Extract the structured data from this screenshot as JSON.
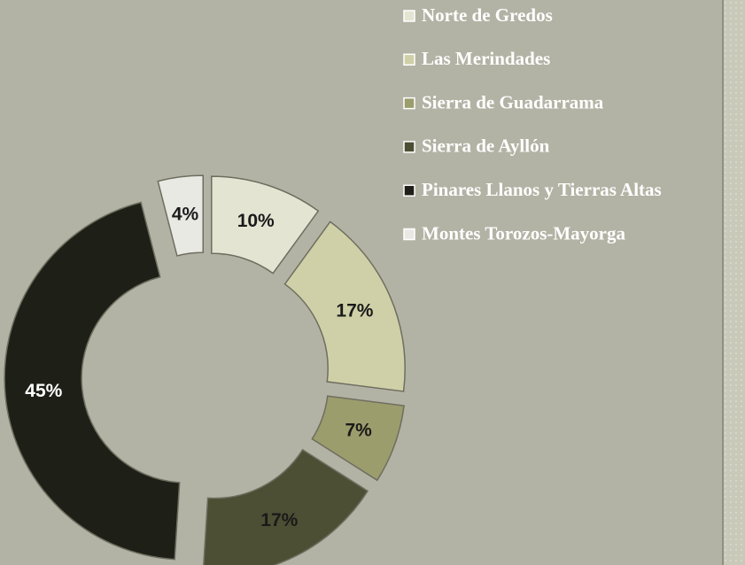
{
  "chart_data": {
    "type": "donut",
    "categories": [
      "Norte de Gredos",
      "Las Merindades",
      "Sierra de Guadarrama",
      "Sierra de Ayllón",
      "Pinares Llanos y Tierras Altas",
      "Montes Torozos-Mayorga"
    ],
    "values": [
      10,
      17,
      7,
      17,
      45,
      4
    ],
    "value_labels": [
      "10%",
      "17%",
      "7%",
      "17%",
      "45%",
      "4%"
    ],
    "colors": [
      "#e4e4d2",
      "#d0d0a8",
      "#9c9d6c",
      "#4c4f33",
      "#1e1f17",
      "#e9e9e4"
    ],
    "legend": "top-right"
  }
}
